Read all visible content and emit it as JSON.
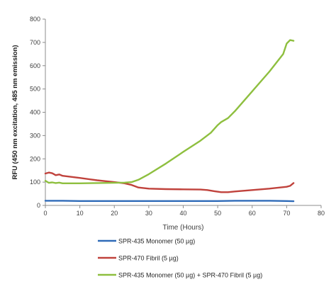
{
  "chart_data": {
    "type": "line",
    "xlabel": "Time (Hours)",
    "ylabel": "RFU (450 nm excitation, 485 nm emission)",
    "xlim": [
      0,
      80
    ],
    "ylim": [
      0,
      800
    ],
    "xticks": [
      0,
      10,
      20,
      30,
      40,
      50,
      60,
      70,
      80
    ],
    "yticks": [
      0,
      100,
      200,
      300,
      400,
      500,
      600,
      700,
      800
    ],
    "grid": false,
    "legend_position": "bottom",
    "series": [
      {
        "name": "SPR-435 Monomer (50 µg)",
        "color": "#2f6bb8",
        "points": [
          [
            0,
            20
          ],
          [
            5,
            20
          ],
          [
            10,
            19
          ],
          [
            20,
            19
          ],
          [
            25,
            19
          ],
          [
            30,
            19
          ],
          [
            40,
            19
          ],
          [
            50,
            19
          ],
          [
            55,
            20
          ],
          [
            60,
            20
          ],
          [
            65,
            20
          ],
          [
            70,
            19
          ],
          [
            72,
            18
          ]
        ]
      },
      {
        "name": "SPR-470 Fibril (5 µg)",
        "color": "#c0423c",
        "points": [
          [
            0,
            137
          ],
          [
            1,
            141
          ],
          [
            2,
            138
          ],
          [
            3,
            130
          ],
          [
            4,
            133
          ],
          [
            5,
            127
          ],
          [
            10,
            118
          ],
          [
            15,
            108
          ],
          [
            20,
            100
          ],
          [
            23,
            95
          ],
          [
            25,
            88
          ],
          [
            27,
            77
          ],
          [
            30,
            72
          ],
          [
            35,
            70
          ],
          [
            40,
            69
          ],
          [
            45,
            68
          ],
          [
            47,
            66
          ],
          [
            49,
            61
          ],
          [
            51,
            57
          ],
          [
            53,
            57
          ],
          [
            55,
            60
          ],
          [
            60,
            66
          ],
          [
            65,
            72
          ],
          [
            70,
            80
          ],
          [
            71,
            84
          ],
          [
            72,
            96
          ]
        ]
      },
      {
        "name": "SPR-435 Monomer (50 µg) + SPR-470 Fibril (5 µg)",
        "color": "#8ebf3f",
        "points": [
          [
            0,
            106
          ],
          [
            1,
            97
          ],
          [
            2,
            99
          ],
          [
            3,
            96
          ],
          [
            4,
            98
          ],
          [
            5,
            95
          ],
          [
            10,
            95
          ],
          [
            15,
            96
          ],
          [
            20,
            97
          ],
          [
            23,
            98
          ],
          [
            25,
            100
          ],
          [
            27,
            110
          ],
          [
            30,
            134
          ],
          [
            35,
            180
          ],
          [
            40,
            230
          ],
          [
            45,
            278
          ],
          [
            48,
            312
          ],
          [
            50,
            345
          ],
          [
            51,
            358
          ],
          [
            53,
            375
          ],
          [
            55,
            405
          ],
          [
            60,
            490
          ],
          [
            65,
            575
          ],
          [
            69,
            650
          ],
          [
            70,
            695
          ],
          [
            71,
            710
          ],
          [
            72,
            707
          ]
        ]
      }
    ]
  }
}
